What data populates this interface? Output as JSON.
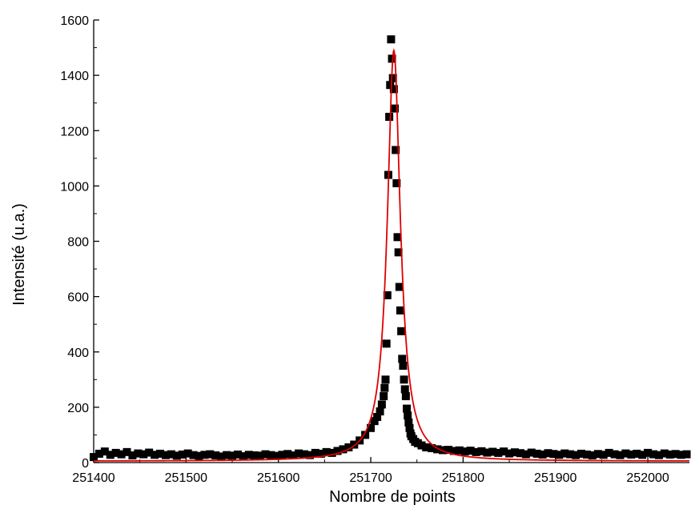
{
  "chart_data": {
    "type": "scatter",
    "title": "",
    "xlabel": "Nombre de points",
    "ylabel": "Intensité (u.a.)",
    "xlim": [
      251400,
      252045
    ],
    "ylim": [
      0,
      1600
    ],
    "x_ticks": [
      251400,
      251500,
      251600,
      251700,
      251800,
      251900,
      252000
    ],
    "x_tick_labels": [
      "251400",
      "251500",
      "251600",
      "251700",
      "251800",
      "251900",
      "252000"
    ],
    "y_ticks": [
      0,
      200,
      400,
      600,
      800,
      1000,
      1200,
      1400,
      1600
    ],
    "y_tick_labels": [
      "0",
      "200",
      "400",
      "600",
      "800",
      "1000",
      "1200",
      "1400",
      "1600"
    ],
    "grid": false,
    "legend": "none",
    "series": [
      {
        "kind": "scatter",
        "marker": "square",
        "color": "#000000",
        "x": [
          251400,
          251406,
          251412,
          251418,
          251424,
          251430,
          251436,
          251442,
          251448,
          251454,
          251460,
          251466,
          251472,
          251478,
          251484,
          251490,
          251496,
          251502,
          251508,
          251514,
          251520,
          251526,
          251532,
          251538,
          251544,
          251550,
          251556,
          251562,
          251568,
          251574,
          251580,
          251586,
          251592,
          251598,
          251604,
          251610,
          251616,
          251622,
          251628,
          251634,
          251640,
          251646,
          251652,
          251658,
          251664,
          251670,
          251676,
          251682,
          251688,
          251694,
          251700,
          251704,
          251707,
          251710,
          251712,
          251714,
          251715,
          251716,
          251717,
          251718,
          251719,
          251720,
          251721,
          251722,
          251723,
          251724,
          251725,
          251726,
          251727,
          251728,
          251729,
          251730,
          251731,
          251732,
          251733,
          251734,
          251735,
          251736,
          251737,
          251738,
          251739,
          251740,
          251741,
          251742,
          251743,
          251744,
          251746,
          251748,
          251751,
          251755,
          251760,
          251766,
          251772,
          251778,
          251784,
          251790,
          251796,
          251802,
          251808,
          251814,
          251820,
          251826,
          251832,
          251838,
          251844,
          251850,
          251856,
          251862,
          251868,
          251874,
          251880,
          251886,
          251892,
          251898,
          251904,
          251910,
          251916,
          251922,
          251928,
          251934,
          251940,
          251946,
          251952,
          251958,
          251964,
          251970,
          251976,
          251982,
          251988,
          251994,
          252000,
          252006,
          252012,
          252018,
          252024,
          252030,
          252036,
          252042
        ],
        "y": [
          20,
          32,
          40,
          28,
          35,
          30,
          38,
          26,
          33,
          30,
          36,
          28,
          32,
          27,
          30,
          25,
          29,
          33,
          27,
          24,
          28,
          30,
          26,
          22,
          27,
          25,
          29,
          23,
          28,
          26,
          25,
          30,
          27,
          24,
          28,
          31,
          26,
          33,
          30,
          27,
          35,
          32,
          38,
          35,
          42,
          48,
          55,
          65,
          80,
          100,
          125,
          150,
          165,
          185,
          210,
          240,
          270,
          300,
          430,
          605,
          1040,
          1250,
          1365,
          1530,
          1460,
          1390,
          1350,
          1280,
          1130,
          1010,
          815,
          760,
          635,
          550,
          475,
          375,
          350,
          300,
          265,
          240,
          195,
          170,
          145,
          125,
          105,
          95,
          85,
          75,
          70,
          62,
          55,
          52,
          48,
          45,
          46,
          42,
          44,
          40,
          43,
          38,
          41,
          36,
          39,
          35,
          40,
          33,
          37,
          34,
          30,
          36,
          32,
          29,
          34,
          31,
          28,
          33,
          30,
          27,
          32,
          29,
          26,
          31,
          28,
          35,
          30,
          27,
          33,
          29,
          32,
          28,
          35,
          30,
          27,
          33,
          29,
          31,
          28,
          30
        ]
      },
      {
        "kind": "line",
        "color": "#e00000",
        "center": 251725,
        "width": 17,
        "amplitude": 1485,
        "baseline": 5
      }
    ]
  }
}
